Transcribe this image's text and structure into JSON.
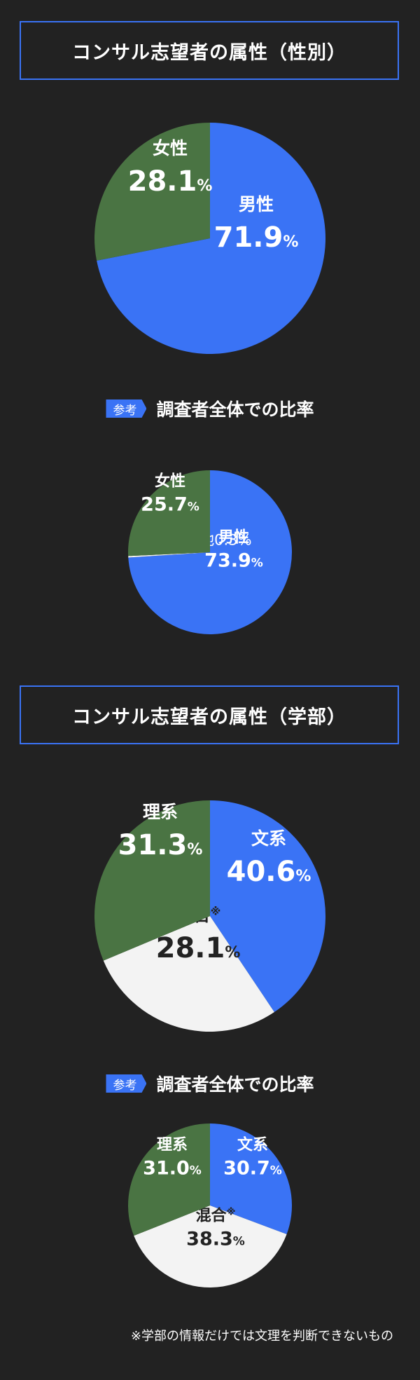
{
  "colors": {
    "background": "#222222",
    "blue": "#3a73f5",
    "green": "#4a7443",
    "white": "#f3f3f3",
    "title_border": "#3a73f5"
  },
  "section1": {
    "title": "コンサル志望者の属性（性別）"
  },
  "section2": {
    "title": "コンサル志望者の属性（学部）"
  },
  "reference": {
    "tag": "参考",
    "label": "調査者全体での比率"
  },
  "footnote": "※学部の情報だけでは文理を判断できないもの",
  "chart_data": [
    {
      "type": "pie",
      "slices": [
        {
          "name": "男性",
          "value": 71.9,
          "label": "71.9",
          "unit": "%",
          "color": "#3a73f5"
        },
        {
          "name": "女性",
          "value": 28.1,
          "label": "28.1",
          "unit": "%",
          "color": "#4a7443"
        }
      ]
    },
    {
      "type": "pie",
      "slices": [
        {
          "name": "男性",
          "value": 73.9,
          "label": "73.9",
          "unit": "%",
          "color": "#3a73f5"
        },
        {
          "name": "その他",
          "value": 0.3,
          "label": "0.3",
          "unit": "%",
          "color": "#f3f3f3",
          "callout": "その他0.3%"
        },
        {
          "name": "女性",
          "value": 25.7,
          "label": "25.7",
          "unit": "%",
          "color": "#4a7443"
        }
      ]
    },
    {
      "type": "pie",
      "slices": [
        {
          "name": "文系",
          "value": 40.6,
          "label": "40.6",
          "unit": "%",
          "color": "#3a73f5"
        },
        {
          "name": "混合",
          "note": "※",
          "value": 28.1,
          "label": "28.1",
          "unit": "%",
          "color": "#f3f3f3"
        },
        {
          "name": "理系",
          "value": 31.3,
          "label": "31.3",
          "unit": "%",
          "color": "#4a7443"
        }
      ]
    },
    {
      "type": "pie",
      "slices": [
        {
          "name": "文系",
          "value": 30.7,
          "label": "30.7",
          "unit": "%",
          "color": "#3a73f5"
        },
        {
          "name": "混合",
          "note": "※",
          "value": 38.3,
          "label": "38.3",
          "unit": "%",
          "color": "#f3f3f3"
        },
        {
          "name": "理系",
          "value": 31.0,
          "label": "31.0",
          "unit": "%",
          "color": "#4a7443"
        }
      ]
    }
  ]
}
